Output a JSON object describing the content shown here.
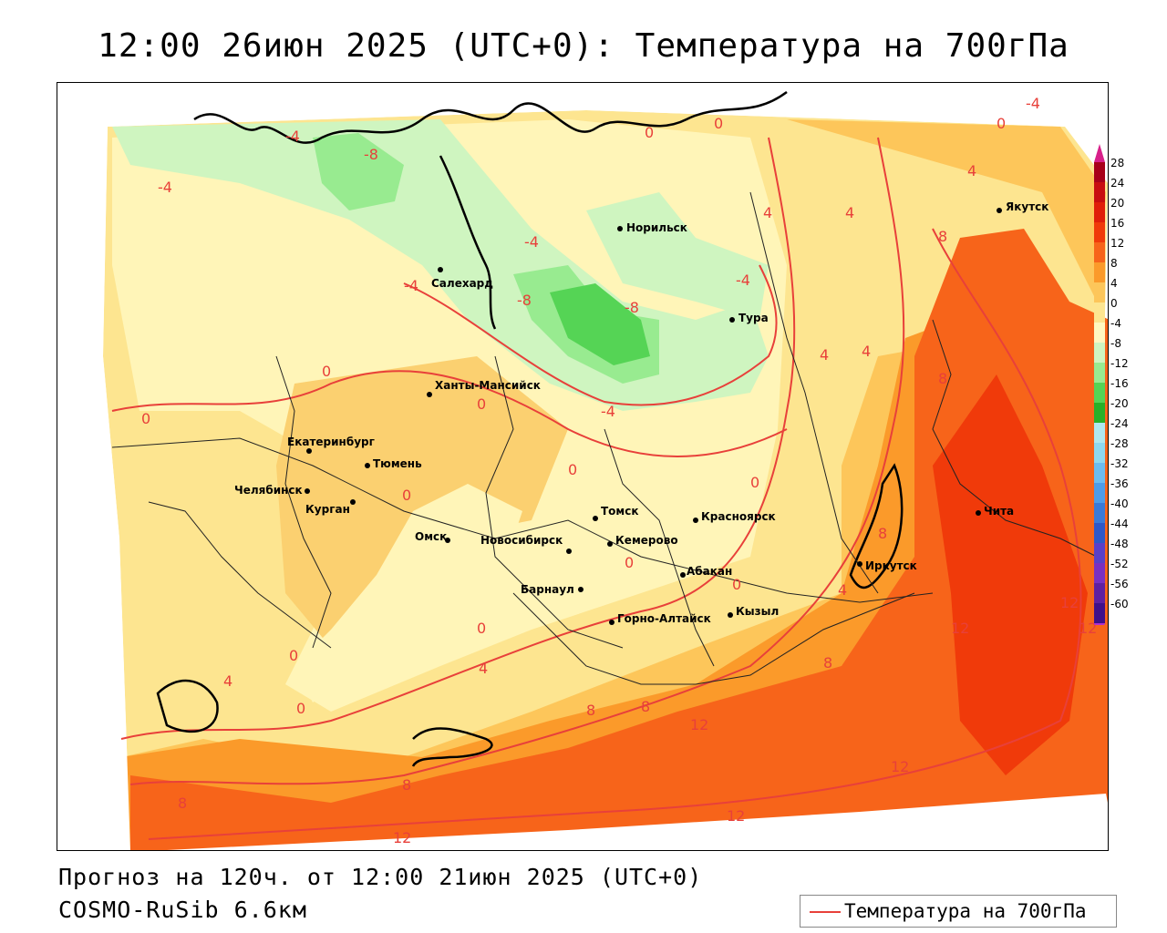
{
  "header": {
    "title": "12:00 26июн 2025 (UTC+0): Температура на 700гПа"
  },
  "footer": {
    "forecast": "Прогноз на 120ч. от 12:00 21июн 2025 (UTC+0)",
    "model": "COSMO-RuSib 6.6км"
  },
  "legend": {
    "label": "Температура на 700гПа",
    "line_color": "#e8403a"
  },
  "colorbar": {
    "ticks": [
      "28",
      "24",
      "20",
      "16",
      "12",
      "8",
      "4",
      "0",
      "-4",
      "-8",
      "-12",
      "-16",
      "-20",
      "-24",
      "-28",
      "-32",
      "-36",
      "-40",
      "-44",
      "-48",
      "-52",
      "-56",
      "-60"
    ],
    "colors": [
      "#a8001a",
      "#c80d10",
      "#e01e0a",
      "#f03a0a",
      "#f7641a",
      "#fb9a2a",
      "#fdc65a",
      "#fde590",
      "#fff8c0",
      "#cff5c0",
      "#98eb90",
      "#55d455",
      "#28b028",
      "#b0e8f0",
      "#8ed8f0",
      "#6cbcf0",
      "#4e9ce8",
      "#3a7ad8",
      "#2e58c8",
      "#5a40c8",
      "#7a30c0",
      "#6020a0",
      "#40108a"
    ]
  },
  "map": {
    "cities": [
      {
        "name": "Якутск"
      },
      {
        "name": "Норильск"
      },
      {
        "name": "Салехард"
      },
      {
        "name": "Тура"
      },
      {
        "name": "Ханты-Мансийск"
      },
      {
        "name": "Екатеринбург"
      },
      {
        "name": "Тюмень"
      },
      {
        "name": "Челябинск"
      },
      {
        "name": "Курган"
      },
      {
        "name": "Омск"
      },
      {
        "name": "Новосибирск"
      },
      {
        "name": "Томск"
      },
      {
        "name": "Красноярск"
      },
      {
        "name": "Кемерово"
      },
      {
        "name": "Абакан"
      },
      {
        "name": "Барнаул"
      },
      {
        "name": "Горно-Алтайск"
      },
      {
        "name": "Кызыл"
      },
      {
        "name": "Иркутск"
      },
      {
        "name": "Чита"
      }
    ],
    "isotherm_labels": [
      "-4",
      "0",
      "4",
      "8",
      "12",
      "-8"
    ]
  }
}
